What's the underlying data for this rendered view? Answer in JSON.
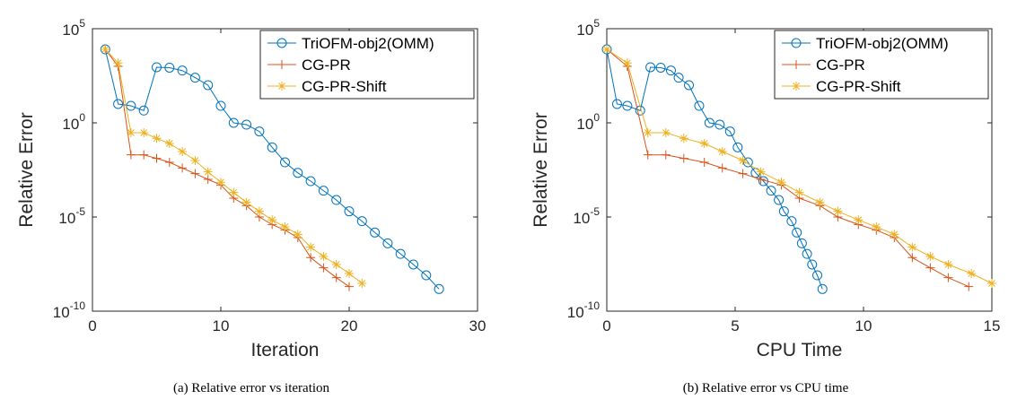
{
  "figure": {
    "captions": [
      "(a)  Relative error vs iteration",
      "(b)  Relative error vs CPU time"
    ]
  },
  "series_styles": [
    {
      "name": "TriOFM-obj2(OMM)",
      "color": "#0072BD",
      "marker": "circle"
    },
    {
      "name": "CG-PR",
      "color": "#D95319",
      "marker": "plus"
    },
    {
      "name": "CG-PR-Shift",
      "color": "#EDB120",
      "marker": "asterisk"
    }
  ],
  "chart_data": [
    {
      "type": "line",
      "xlabel": "Iteration",
      "ylabel": "Relative Error",
      "yscale": "log",
      "xlim": [
        0,
        30
      ],
      "ylim": [
        1e-10,
        100000.0
      ],
      "xticks": [
        "0",
        "10",
        "20",
        "30"
      ],
      "yticks": [
        {
          "base": "10",
          "exp": "5",
          "value": 100000
        },
        {
          "base": "10",
          "exp": "0",
          "value": 1
        },
        {
          "base": "10",
          "exp": "-5",
          "value": 1e-05
        },
        {
          "base": "10",
          "exp": "-10",
          "value": 1e-10
        }
      ],
      "legend": "top-right",
      "grid": false,
      "series": [
        {
          "name": "TriOFM-obj2(OMM)",
          "x": [
            1,
            2,
            3,
            4,
            5,
            6,
            7,
            8,
            9,
            10,
            11,
            12,
            13,
            14,
            15,
            16,
            17,
            18,
            19,
            20,
            21,
            22,
            23,
            24,
            25,
            26,
            27
          ],
          "y": [
            8000,
            10,
            8,
            4.5,
            900,
            850,
            600,
            250,
            100,
            8,
            1,
            0.8,
            0.35,
            0.05,
            0.008,
            0.0022,
            0.0008,
            0.00025,
            8e-05,
            2e-05,
            6e-06,
            1.5e-06,
            4e-07,
            1.1e-07,
            3e-08,
            8e-09,
            1.5e-09
          ]
        },
        {
          "name": "CG-PR",
          "x": [
            1,
            2,
            3,
            4,
            5,
            6,
            7,
            8,
            9,
            10,
            11,
            12,
            13,
            14,
            15,
            16,
            17,
            18,
            19,
            20
          ],
          "y": [
            8000,
            1000,
            0.02,
            0.02,
            0.013,
            0.008,
            0.004,
            0.002,
            0.001,
            0.0005,
            0.0001,
            4e-05,
            1e-05,
            4e-06,
            2e-06,
            8e-07,
            7e-08,
            2e-08,
            6e-09,
            2e-09
          ]
        },
        {
          "name": "CG-PR-Shift",
          "x": [
            1,
            2,
            3,
            4,
            5,
            6,
            7,
            8,
            9,
            10,
            11,
            12,
            13,
            14,
            15,
            16,
            17,
            18,
            19,
            20,
            21
          ],
          "y": [
            8000,
            1500,
            0.3,
            0.3,
            0.15,
            0.08,
            0.03,
            0.01,
            0.0025,
            0.0007,
            0.0002,
            6e-05,
            2e-05,
            7e-06,
            3e-06,
            1.2e-06,
            2.5e-07,
            8e-08,
            3e-08,
            1e-08,
            3e-09
          ]
        }
      ]
    },
    {
      "type": "line",
      "xlabel": "CPU Time",
      "ylabel": "Relative Error",
      "yscale": "log",
      "xlim": [
        0,
        15
      ],
      "ylim": [
        1e-10,
        100000.0
      ],
      "xticks": [
        "0",
        "5",
        "10",
        "15"
      ],
      "yticks": [
        {
          "base": "10",
          "exp": "5",
          "value": 100000
        },
        {
          "base": "10",
          "exp": "0",
          "value": 1
        },
        {
          "base": "10",
          "exp": "-5",
          "value": 1e-05
        },
        {
          "base": "10",
          "exp": "-10",
          "value": 1e-10
        }
      ],
      "legend": "top-right",
      "grid": false,
      "series": [
        {
          "name": "TriOFM-obj2(OMM)",
          "x": [
            0,
            0.4,
            0.8,
            1.3,
            1.7,
            2.1,
            2.5,
            2.8,
            3.2,
            3.6,
            4,
            4.4,
            4.8,
            5.1,
            5.5,
            5.8,
            6.1,
            6.4,
            6.7,
            6.9,
            7.2,
            7.4,
            7.6,
            7.8,
            8,
            8.2,
            8.4
          ],
          "y": [
            8000,
            10,
            8,
            4.5,
            900,
            850,
            600,
            250,
            100,
            8,
            1,
            0.8,
            0.35,
            0.05,
            0.008,
            0.0022,
            0.0008,
            0.00025,
            8e-05,
            2e-05,
            6e-06,
            1.5e-06,
            4e-07,
            1.1e-07,
            3e-08,
            8e-09,
            1.5e-09
          ]
        },
        {
          "name": "CG-PR",
          "x": [
            0,
            0.8,
            1.6,
            2.3,
            3,
            3.8,
            4.5,
            5.3,
            6,
            6.8,
            7.5,
            8.3,
            9,
            9.8,
            10.5,
            11.2,
            11.9,
            12.6,
            13.3,
            14.1
          ],
          "y": [
            8000,
            1000,
            0.02,
            0.02,
            0.013,
            0.008,
            0.004,
            0.002,
            0.001,
            0.0005,
            0.0001,
            4e-05,
            1e-05,
            4e-06,
            2e-06,
            8e-07,
            7e-08,
            2e-08,
            6e-09,
            2e-09
          ]
        },
        {
          "name": "CG-PR-Shift",
          "x": [
            0,
            0.8,
            1.6,
            2.3,
            3,
            3.8,
            4.5,
            5.3,
            6,
            6.8,
            7.5,
            8.3,
            9,
            9.8,
            10.5,
            11.2,
            11.9,
            12.6,
            13.3,
            14.2,
            15
          ],
          "y": [
            8000,
            1500,
            0.3,
            0.3,
            0.15,
            0.08,
            0.03,
            0.01,
            0.0025,
            0.0007,
            0.0002,
            6e-05,
            2e-05,
            7e-06,
            3e-06,
            1.2e-06,
            2.5e-07,
            8e-08,
            3e-08,
            1e-08,
            3e-09
          ]
        }
      ]
    }
  ]
}
